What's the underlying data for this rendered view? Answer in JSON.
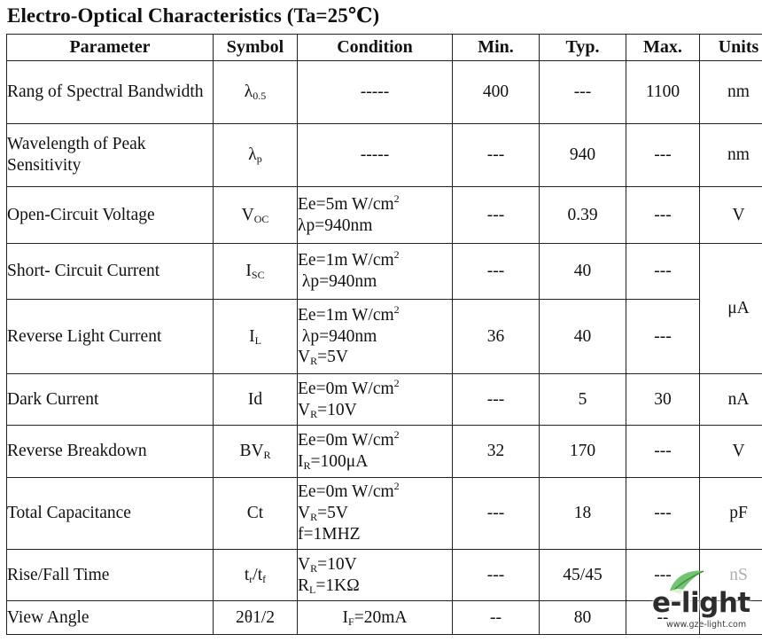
{
  "title": "Electro-Optical Characteristics (Ta=25℃)",
  "headers": {
    "parameter": "Parameter",
    "symbol": "Symbol",
    "condition": "Condition",
    "min": "Min.",
    "typ": "Typ.",
    "max": "Max.",
    "units": "Units"
  },
  "rows": [
    {
      "parameter": "Rang of Spectral Bandwidth",
      "symbol": {
        "main": "λ",
        "sub": "0.5"
      },
      "condition": [
        "-----"
      ],
      "min": "400",
      "typ": "---",
      "max": "1100",
      "unit": "nm"
    },
    {
      "parameter": "Wavelength of Peak Sensitivity",
      "symbol": {
        "main": "λ",
        "sub": "p"
      },
      "condition": [
        "-----"
      ],
      "min": "---",
      "typ": "940",
      "max": "---",
      "unit": "nm"
    },
    {
      "parameter": "Open-Circuit Voltage",
      "symbol": {
        "main": "V",
        "sub": "OC"
      },
      "condition": [
        {
          "pre": "Ee=5m W/cm",
          "sup": "2"
        },
        "λp=940nm"
      ],
      "min": "---",
      "typ": "0.39",
      "max": "---",
      "unit": "V"
    },
    {
      "parameter": "Short- Circuit Current",
      "symbol": {
        "main": "I",
        "sub": "SC"
      },
      "condition": [
        {
          "pre": "Ee=1m W/cm",
          "sup": "2"
        },
        " λp=940nm"
      ],
      "min": "---",
      "typ": "40",
      "max": "---",
      "unit": "μA"
    },
    {
      "parameter": "Reverse Light Current",
      "symbol": {
        "main": "I",
        "sub": "L"
      },
      "condition": [
        {
          "pre": "Ee=1m W/cm",
          "sup": "2"
        },
        " λp=940nm",
        {
          "main": "V",
          "sub": "R",
          "post": "=5V"
        }
      ],
      "min": "36",
      "typ": "40",
      "max": "---"
    },
    {
      "parameter": "Dark Current",
      "symbol": {
        "main": "Id"
      },
      "condition": [
        {
          "pre": "Ee=0m W/cm",
          "sup": "2"
        },
        {
          "main": "V",
          "sub": "R",
          "post": "=10V"
        }
      ],
      "min": "---",
      "typ": "5",
      "max": "30",
      "unit": "nA"
    },
    {
      "parameter": "Reverse Breakdown",
      "symbol": {
        "main": "BV",
        "sub": "R"
      },
      "condition": [
        {
          "pre": "Ee=0m W/cm",
          "sup": "2"
        },
        {
          "main": "I",
          "sub": "R",
          "post": "=100μA"
        }
      ],
      "min": "32",
      "typ": "170",
      "max": "---",
      "unit": "V"
    },
    {
      "parameter": "Total Capacitance",
      "symbol": {
        "main": "Ct"
      },
      "condition": [
        {
          "pre": "Ee=0m W/cm",
          "sup": "2"
        },
        {
          "main": "V",
          "sub": "R",
          "post": "=5V"
        },
        "f=1MHZ"
      ],
      "min": "---",
      "typ": "18",
      "max": "---",
      "unit": "pF"
    },
    {
      "parameter": "Rise/Fall Time",
      "symbol": {
        "main": "t",
        "sub": "r",
        "mid": "/t",
        "sub2": "f"
      },
      "condition": [
        {
          "main": "V",
          "sub": "R",
          "post": "=10V"
        },
        {
          "main": "R",
          "sub": "L",
          "post": "=1KΩ"
        }
      ],
      "min": "---",
      "typ": "45/45",
      "max": "---",
      "unit": "nS"
    },
    {
      "parameter": "View Angle",
      "symbol": {
        "main": "2θ1/2"
      },
      "condition": [
        {
          "main": "I",
          "sub": "F",
          "post": "=20mA"
        }
      ],
      "min": "--",
      "typ": "80",
      "max": "--",
      "unit": ""
    }
  ],
  "watermark": {
    "brand": "e-light",
    "url": "www.gze-light.com"
  }
}
